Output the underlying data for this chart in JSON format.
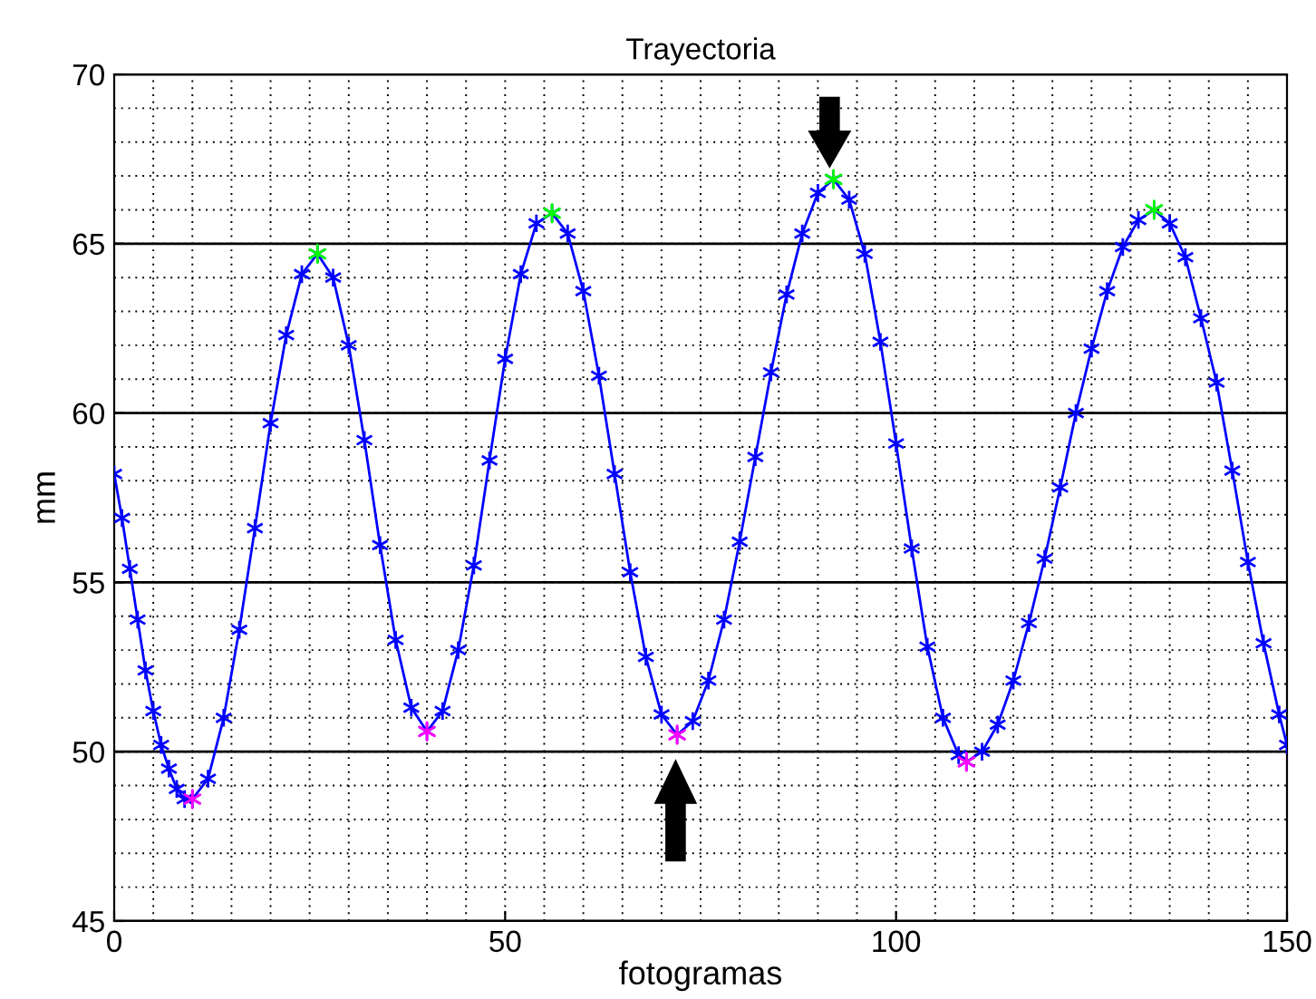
{
  "chart_data": {
    "type": "line",
    "title": "Trayectoria",
    "xlabel": "fotogramas",
    "ylabel": "mm",
    "xlim": [
      0,
      150
    ],
    "ylim": [
      45,
      70
    ],
    "xticks": [
      0,
      50,
      100,
      150
    ],
    "yticks": [
      45,
      50,
      55,
      60,
      65,
      70
    ],
    "grid": true,
    "marker": "cross",
    "line_style": "solid",
    "series": [
      {
        "color": "#0000ff",
        "x": [
          0,
          1,
          2,
          3,
          4,
          5,
          6,
          7,
          8,
          9,
          10,
          12,
          14,
          16,
          18,
          20,
          22,
          24,
          26,
          28,
          30,
          32,
          34,
          36,
          38,
          40,
          42,
          44,
          46,
          48,
          50,
          52,
          54,
          56,
          58,
          60,
          62,
          64,
          66,
          68,
          70,
          72,
          74,
          76,
          78,
          80,
          82,
          84,
          86,
          88,
          90,
          92,
          94,
          96,
          98,
          100,
          102,
          104,
          106,
          108,
          109,
          111,
          113,
          115,
          117,
          119,
          121,
          123,
          125,
          127,
          129,
          131,
          133,
          135,
          137,
          139,
          141,
          143,
          145,
          147,
          149,
          150
        ],
        "values": [
          58.2,
          56.9,
          55.4,
          53.9,
          52.4,
          51.2,
          50.2,
          49.5,
          48.9,
          48.6,
          48.6,
          49.2,
          51.0,
          53.6,
          56.6,
          59.7,
          62.3,
          64.1,
          64.7,
          64.0,
          62.0,
          59.2,
          56.1,
          53.3,
          51.3,
          50.6,
          51.2,
          53.0,
          55.5,
          58.6,
          61.6,
          64.1,
          65.6,
          65.9,
          65.3,
          63.6,
          61.1,
          58.2,
          55.3,
          52.8,
          51.1,
          50.5,
          50.9,
          52.1,
          53.9,
          56.2,
          58.7,
          61.2,
          63.5,
          65.3,
          66.5,
          66.9,
          66.3,
          64.7,
          62.1,
          59.1,
          56.0,
          53.1,
          51.0,
          49.9,
          49.7,
          50.0,
          50.8,
          52.1,
          53.8,
          55.7,
          57.8,
          60.0,
          61.9,
          63.6,
          64.9,
          65.7,
          66.0,
          65.6,
          64.6,
          62.8,
          60.9,
          58.3,
          55.6,
          53.2,
          51.1,
          50.2
        ]
      },
      {
        "type": "scatter",
        "color": "#00ff00",
        "x": [
          26,
          56,
          92,
          133
        ],
        "values": [
          64.7,
          65.9,
          66.9,
          66.0
        ]
      },
      {
        "type": "scatter",
        "color": "#ff00ff",
        "x": [
          10,
          40,
          72,
          109
        ],
        "values": [
          48.6,
          50.6,
          50.5,
          49.7
        ]
      }
    ]
  }
}
